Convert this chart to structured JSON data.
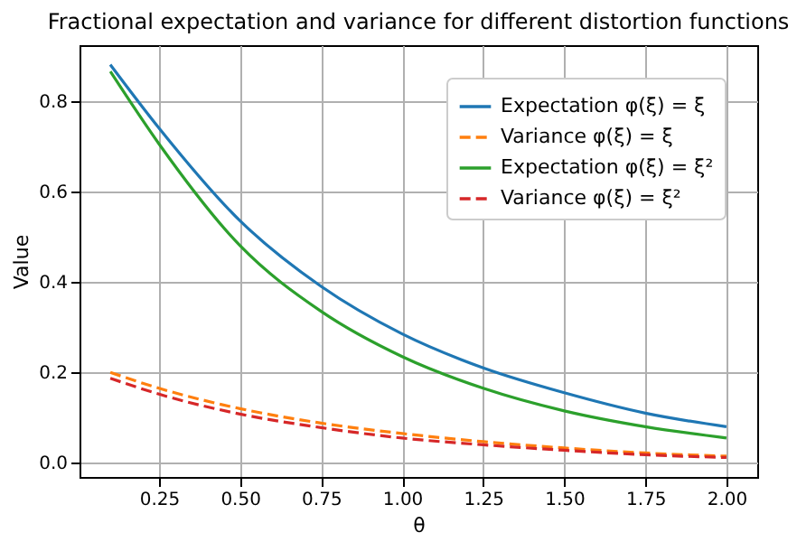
{
  "chart_data": {
    "type": "line",
    "title": "Fractional expectation and variance for different distortion functions",
    "xlabel": "θ",
    "ylabel": "Value",
    "x": [
      0.1,
      0.25,
      0.5,
      0.75,
      1.0,
      1.25,
      1.5,
      1.75,
      2.0
    ],
    "series": [
      {
        "name": "Expectation φ(ξ) = ξ",
        "color": "#1f77b4",
        "line_style": "solid",
        "values": [
          0.88,
          0.74,
          0.535,
          0.39,
          0.285,
          0.21,
          0.155,
          0.11,
          0.08
        ]
      },
      {
        "name": "Variance φ(ξ) = ξ",
        "color": "#ff7f0e",
        "line_style": "dashed",
        "values": [
          0.2,
          0.165,
          0.12,
          0.088,
          0.065,
          0.047,
          0.033,
          0.022,
          0.015
        ]
      },
      {
        "name": "Expectation φ(ξ) = ξ²",
        "color": "#2ca02c",
        "line_style": "solid",
        "values": [
          0.865,
          0.705,
          0.48,
          0.335,
          0.235,
          0.165,
          0.115,
          0.08,
          0.055
        ]
      },
      {
        "name": "Variance φ(ξ) = ξ²",
        "color": "#d62728",
        "line_style": "dashed",
        "values": [
          0.187,
          0.152,
          0.108,
          0.078,
          0.055,
          0.04,
          0.028,
          0.018,
          0.012
        ]
      }
    ],
    "xlim": [
      0.005,
      2.095
    ],
    "ylim": [
      -0.031,
      0.923
    ],
    "xticks": [
      {
        "value": 0.25,
        "label": "0.25"
      },
      {
        "value": 0.5,
        "label": "0.50"
      },
      {
        "value": 0.75,
        "label": "0.75"
      },
      {
        "value": 1,
        "label": "1.00"
      },
      {
        "value": 1.25,
        "label": "1.25"
      },
      {
        "value": 1.5,
        "label": "1.50"
      },
      {
        "value": 1.75,
        "label": "1.75"
      },
      {
        "value": 2,
        "label": "2.00"
      }
    ],
    "yticks": [
      {
        "value": 0,
        "label": "0.0"
      },
      {
        "value": 0.2,
        "label": "0.2"
      },
      {
        "value": 0.4,
        "label": "0.4"
      },
      {
        "value": 0.6,
        "label": "0.6"
      },
      {
        "value": 0.8,
        "label": "0.8"
      }
    ],
    "grid": true,
    "legend": "top right"
  }
}
